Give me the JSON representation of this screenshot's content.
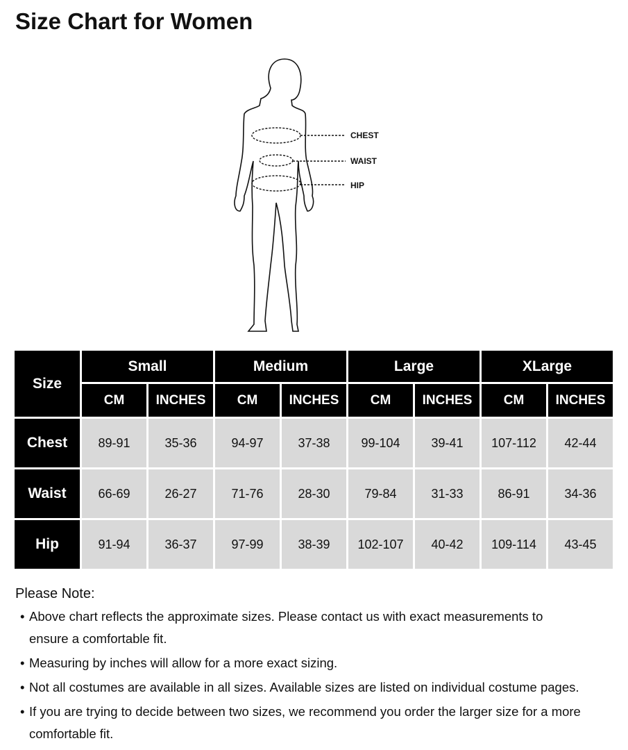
{
  "title": "Size Chart for Women",
  "figure": {
    "labels": [
      "CHEST",
      "WAIST",
      "HIP"
    ]
  },
  "table": {
    "corner": "Size",
    "sizes": [
      "Small",
      "Medium",
      "Large",
      "XLarge"
    ],
    "units": [
      "CM",
      "INCHES"
    ],
    "rows": [
      {
        "label": "Chest",
        "values": [
          "89-91",
          "35-36",
          "94-97",
          "37-38",
          "99-104",
          "39-41",
          "107-112",
          "42-44"
        ]
      },
      {
        "label": "Waist",
        "values": [
          "66-69",
          "26-27",
          "71-76",
          "28-30",
          "79-84",
          "31-33",
          "86-91",
          "34-36"
        ]
      },
      {
        "label": "Hip",
        "values": [
          "91-94",
          "36-37",
          "97-99",
          "38-39",
          "102-107",
          "40-42",
          "109-114",
          "43-45"
        ]
      }
    ]
  },
  "notes": {
    "title": "Please Note:",
    "items": [
      "Above chart reflects the approximate sizes. Please contact us with exact measurements to ensure a comfortable fit.",
      "Measuring by inches will allow for a more exact sizing.",
      "Not all costumes are available in all sizes. Available sizes are listed on individual costume pages.",
      "If you are trying to decide between two sizes, we recommend you order the larger size for a more comfortable fit."
    ]
  }
}
